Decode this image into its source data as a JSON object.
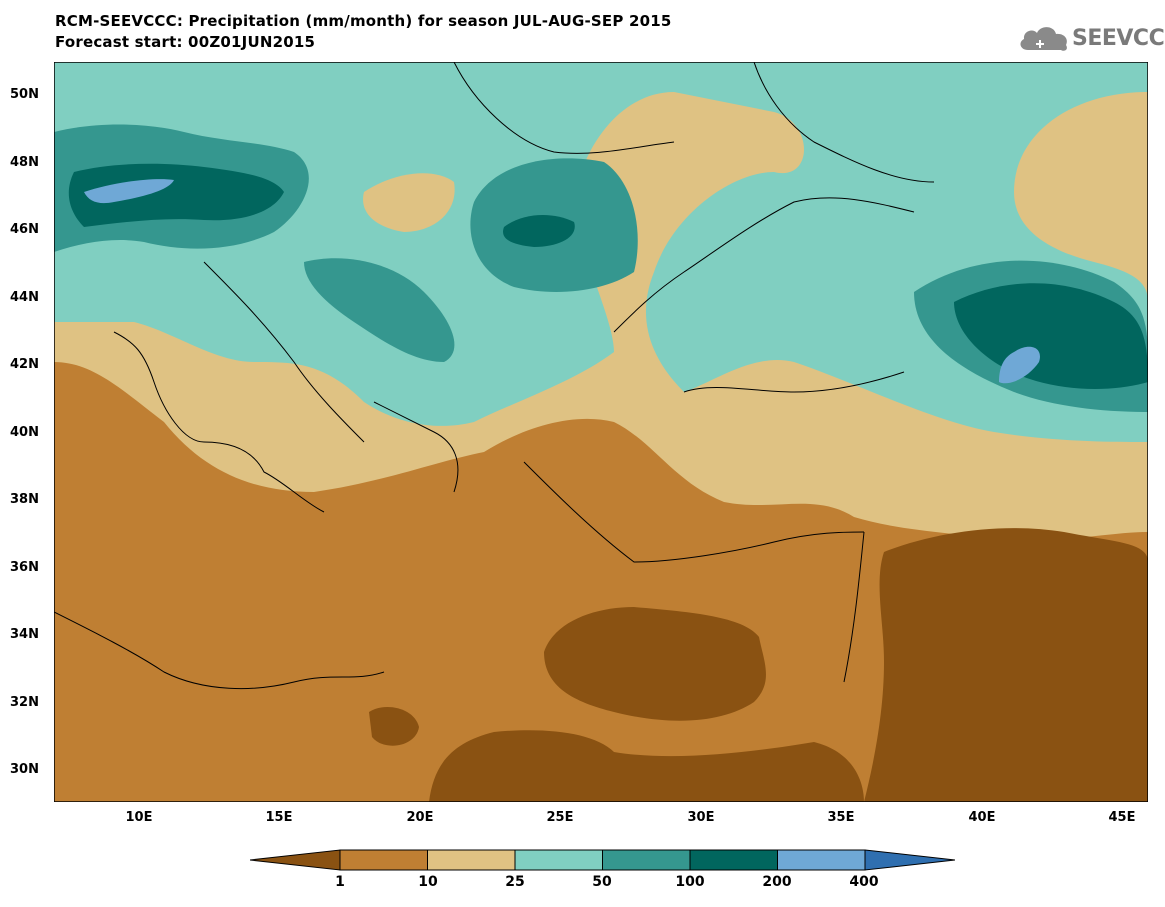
{
  "header": {
    "title": "RCM-SEEVCCC: Precipitation (mm/month) for season JUL-AUG-SEP 2015",
    "subtitle": "Forecast start: 00Z01JUN2015",
    "logo_text": "SEEVCCC"
  },
  "map": {
    "variable": "Precipitation",
    "units": "mm/month",
    "lat_labels": [
      "50N",
      "48N",
      "46N",
      "44N",
      "42N",
      "40N",
      "38N",
      "36N",
      "34N",
      "32N",
      "30N"
    ],
    "lon_labels": [
      "10E",
      "15E",
      "20E",
      "25E",
      "30E",
      "35E",
      "40E",
      "45E"
    ]
  },
  "legend": {
    "levels": [
      "1",
      "10",
      "25",
      "50",
      "100",
      "200",
      "400"
    ],
    "colors": [
      "#8a5212",
      "#bf7f33",
      "#dfc283",
      "#80cfc1",
      "#35978f",
      "#01665e",
      "#6fa8d6",
      "#2f6fb0"
    ]
  }
}
